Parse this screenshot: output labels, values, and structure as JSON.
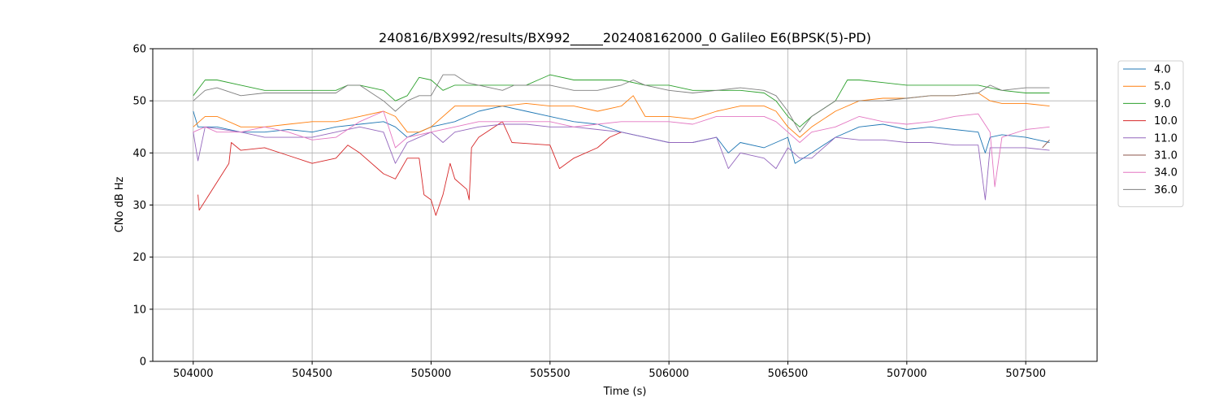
{
  "chart_data": {
    "type": "line",
    "title": "240816/BX992/results/BX992_____202408162000_0 Galileo E6(BPSK(5)-PD)",
    "xlabel": "Time (s)",
    "ylabel": "CNo dB Hz",
    "xlim": [
      503830,
      507800
    ],
    "ylim": [
      0,
      60
    ],
    "x_ticks": [
      504000,
      504500,
      505000,
      505500,
      506000,
      506500,
      507000,
      507500
    ],
    "y_ticks": [
      0,
      10,
      20,
      30,
      40,
      50,
      60
    ],
    "grid": true,
    "legend_position": "upper-right-outside",
    "series": [
      {
        "name": "4.0",
        "color": "#1f77b4",
        "points": [
          [
            504000,
            48
          ],
          [
            504020,
            45
          ],
          [
            504100,
            45
          ],
          [
            504200,
            44
          ],
          [
            504300,
            44
          ],
          [
            504400,
            44.5
          ],
          [
            504500,
            44
          ],
          [
            504600,
            45
          ],
          [
            504700,
            45.5
          ],
          [
            504800,
            46
          ],
          [
            504850,
            45
          ],
          [
            504900,
            43
          ],
          [
            505000,
            45
          ],
          [
            505100,
            46
          ],
          [
            505200,
            48
          ],
          [
            505300,
            49
          ],
          [
            505400,
            48
          ],
          [
            505500,
            47
          ],
          [
            505600,
            46
          ],
          [
            505700,
            45.5
          ],
          [
            505800,
            44
          ],
          [
            505900,
            43
          ],
          [
            506000,
            42
          ],
          [
            506100,
            42
          ],
          [
            506200,
            43
          ],
          [
            506250,
            40
          ],
          [
            506300,
            42
          ],
          [
            506400,
            41
          ],
          [
            506500,
            43
          ],
          [
            506530,
            38
          ],
          [
            506600,
            40
          ],
          [
            506700,
            43
          ],
          [
            506800,
            45
          ],
          [
            506900,
            45.5
          ],
          [
            507000,
            44.5
          ],
          [
            507100,
            45
          ],
          [
            507200,
            44.5
          ],
          [
            507300,
            44
          ],
          [
            507330,
            40
          ],
          [
            507350,
            43
          ],
          [
            507400,
            43.5
          ],
          [
            507500,
            43
          ],
          [
            507600,
            42
          ]
        ]
      },
      {
        "name": "5.0",
        "color": "#ff7f0e",
        "points": [
          [
            504000,
            45
          ],
          [
            504050,
            47
          ],
          [
            504100,
            47
          ],
          [
            504200,
            45
          ],
          [
            504300,
            45
          ],
          [
            504400,
            45.5
          ],
          [
            504500,
            46
          ],
          [
            504600,
            46
          ],
          [
            504700,
            47
          ],
          [
            504800,
            48
          ],
          [
            504850,
            47
          ],
          [
            504900,
            44
          ],
          [
            504950,
            44
          ],
          [
            505000,
            45
          ],
          [
            505100,
            49
          ],
          [
            505200,
            49
          ],
          [
            505300,
            49
          ],
          [
            505400,
            49.5
          ],
          [
            505500,
            49
          ],
          [
            505600,
            49
          ],
          [
            505700,
            48
          ],
          [
            505800,
            49
          ],
          [
            505850,
            51
          ],
          [
            505900,
            47
          ],
          [
            506000,
            47
          ],
          [
            506100,
            46.5
          ],
          [
            506200,
            48
          ],
          [
            506300,
            49
          ],
          [
            506400,
            49
          ],
          [
            506450,
            48
          ],
          [
            506500,
            45
          ],
          [
            506550,
            43
          ],
          [
            506600,
            45
          ],
          [
            506700,
            48
          ],
          [
            506800,
            50
          ],
          [
            506900,
            50.5
          ],
          [
            507000,
            50.5
          ],
          [
            507100,
            51
          ],
          [
            507200,
            51
          ],
          [
            507300,
            51.5
          ],
          [
            507350,
            50
          ],
          [
            507400,
            49.5
          ],
          [
            507500,
            49.5
          ],
          [
            507600,
            49
          ]
        ]
      },
      {
        "name": "9.0",
        "color": "#2ca02c",
        "points": [
          [
            504000,
            51
          ],
          [
            504050,
            54
          ],
          [
            504100,
            54
          ],
          [
            504200,
            53
          ],
          [
            504300,
            52
          ],
          [
            504400,
            52
          ],
          [
            504500,
            52
          ],
          [
            504600,
            52
          ],
          [
            504650,
            53
          ],
          [
            504700,
            53
          ],
          [
            504800,
            52
          ],
          [
            504850,
            50
          ],
          [
            504900,
            51
          ],
          [
            504950,
            54.5
          ],
          [
            505000,
            54
          ],
          [
            505050,
            52
          ],
          [
            505100,
            53
          ],
          [
            505200,
            53
          ],
          [
            505300,
            53
          ],
          [
            505400,
            53
          ],
          [
            505450,
            54
          ],
          [
            505500,
            55
          ],
          [
            505600,
            54
          ],
          [
            505700,
            54
          ],
          [
            505800,
            54
          ],
          [
            505900,
            53
          ],
          [
            506000,
            53
          ],
          [
            506100,
            52
          ],
          [
            506200,
            52
          ],
          [
            506300,
            52
          ],
          [
            506400,
            51.5
          ],
          [
            506450,
            50
          ],
          [
            506500,
            47
          ],
          [
            506550,
            45
          ],
          [
            506600,
            47
          ],
          [
            506700,
            50
          ],
          [
            506750,
            54
          ],
          [
            506800,
            54
          ],
          [
            506900,
            53.5
          ],
          [
            507000,
            53
          ],
          [
            507100,
            53
          ],
          [
            507200,
            53
          ],
          [
            507300,
            53
          ],
          [
            507350,
            52.5
          ],
          [
            507400,
            52
          ],
          [
            507500,
            51.5
          ],
          [
            507600,
            51.5
          ]
        ]
      },
      {
        "name": "10.0",
        "color": "#d62728",
        "points": [
          [
            504020,
            32
          ],
          [
            504025,
            29
          ],
          [
            504150,
            38
          ],
          [
            504160,
            42
          ],
          [
            504200,
            40.5
          ],
          [
            504300,
            41
          ],
          [
            504400,
            39.5
          ],
          [
            504500,
            38
          ],
          [
            504600,
            39
          ],
          [
            504650,
            41.5
          ],
          [
            504700,
            40
          ],
          [
            504800,
            36
          ],
          [
            504850,
            35
          ],
          [
            504900,
            39
          ],
          [
            504950,
            39
          ],
          [
            504970,
            32
          ],
          [
            505000,
            31
          ],
          [
            505020,
            28
          ],
          [
            505050,
            32
          ],
          [
            505080,
            38
          ],
          [
            505100,
            35
          ],
          [
            505150,
            33
          ],
          [
            505160,
            31
          ],
          [
            505170,
            41
          ],
          [
            505200,
            43
          ],
          [
            505300,
            46
          ],
          [
            505340,
            42
          ],
          [
            505500,
            41.5
          ],
          [
            505540,
            37
          ],
          [
            505600,
            39
          ],
          [
            505700,
            41
          ],
          [
            505750,
            43
          ],
          [
            505800,
            44
          ]
        ]
      },
      {
        "name": "11.0",
        "color": "#9467bd",
        "points": [
          [
            504000,
            44
          ],
          [
            504020,
            38.5
          ],
          [
            504050,
            45
          ],
          [
            504200,
            44
          ],
          [
            504300,
            43
          ],
          [
            504400,
            43
          ],
          [
            504500,
            43
          ],
          [
            504600,
            44
          ],
          [
            504700,
            45
          ],
          [
            504800,
            44
          ],
          [
            504850,
            38
          ],
          [
            504900,
            42
          ],
          [
            505000,
            44
          ],
          [
            505050,
            42
          ],
          [
            505100,
            44
          ],
          [
            505200,
            45
          ],
          [
            505300,
            45.5
          ],
          [
            505400,
            45.5
          ],
          [
            505500,
            45
          ],
          [
            505600,
            45
          ],
          [
            505700,
            44.5
          ],
          [
            505800,
            44
          ],
          [
            505900,
            43
          ],
          [
            506000,
            42
          ],
          [
            506100,
            42
          ],
          [
            506200,
            43
          ],
          [
            506250,
            37
          ],
          [
            506300,
            40
          ],
          [
            506400,
            39
          ],
          [
            506450,
            37
          ],
          [
            506500,
            41
          ],
          [
            506550,
            39
          ],
          [
            506600,
            39
          ],
          [
            506650,
            41
          ],
          [
            506700,
            43
          ],
          [
            506800,
            42.5
          ],
          [
            506900,
            42.5
          ],
          [
            507000,
            42
          ],
          [
            507100,
            42
          ],
          [
            507200,
            41.5
          ],
          [
            507300,
            41.5
          ],
          [
            507330,
            31
          ],
          [
            507350,
            41
          ],
          [
            507400,
            41
          ],
          [
            507500,
            41
          ],
          [
            507600,
            40.5
          ]
        ]
      },
      {
        "name": "31.0",
        "color": "#8c564b",
        "points": [
          [
            507570,
            41
          ],
          [
            507600,
            42.5
          ]
        ]
      },
      {
        "name": "34.0",
        "color": "#e377c2",
        "points": [
          [
            504000,
            44
          ],
          [
            504050,
            45
          ],
          [
            504100,
            44
          ],
          [
            504200,
            44
          ],
          [
            504300,
            45
          ],
          [
            504400,
            44
          ],
          [
            504500,
            42.5
          ],
          [
            504600,
            43
          ],
          [
            504700,
            46
          ],
          [
            504800,
            48
          ],
          [
            504850,
            41
          ],
          [
            504900,
            43
          ],
          [
            505000,
            44
          ],
          [
            505100,
            45
          ],
          [
            505200,
            46
          ],
          [
            505300,
            46
          ],
          [
            505400,
            46
          ],
          [
            505500,
            46
          ],
          [
            505600,
            45
          ],
          [
            505700,
            45.5
          ],
          [
            505800,
            46
          ],
          [
            505900,
            46
          ],
          [
            506000,
            46
          ],
          [
            506100,
            45.5
          ],
          [
            506200,
            47
          ],
          [
            506300,
            47
          ],
          [
            506400,
            47
          ],
          [
            506450,
            46
          ],
          [
            506500,
            44
          ],
          [
            506550,
            42
          ],
          [
            506600,
            44
          ],
          [
            506700,
            45
          ],
          [
            506800,
            47
          ],
          [
            506900,
            46
          ],
          [
            507000,
            45.5
          ],
          [
            507100,
            46
          ],
          [
            507200,
            47
          ],
          [
            507300,
            47.5
          ],
          [
            507350,
            44
          ],
          [
            507370,
            33.5
          ],
          [
            507400,
            43
          ],
          [
            507500,
            44.5
          ],
          [
            507600,
            45
          ]
        ]
      },
      {
        "name": "36.0",
        "color": "#7f7f7f",
        "points": [
          [
            504000,
            50
          ],
          [
            504050,
            52
          ],
          [
            504100,
            52.5
          ],
          [
            504200,
            51
          ],
          [
            504300,
            51.5
          ],
          [
            504400,
            51.5
          ],
          [
            504500,
            51.5
          ],
          [
            504600,
            51.5
          ],
          [
            504650,
            53
          ],
          [
            504700,
            53
          ],
          [
            504800,
            50
          ],
          [
            504850,
            48
          ],
          [
            504900,
            50
          ],
          [
            504950,
            51
          ],
          [
            505000,
            51
          ],
          [
            505050,
            55
          ],
          [
            505100,
            55
          ],
          [
            505150,
            53.5
          ],
          [
            505200,
            53
          ],
          [
            505300,
            52
          ],
          [
            505350,
            53
          ],
          [
            505400,
            53
          ],
          [
            505450,
            53
          ],
          [
            505500,
            53
          ],
          [
            505600,
            52
          ],
          [
            505700,
            52
          ],
          [
            505800,
            53
          ],
          [
            505850,
            54
          ],
          [
            505900,
            53
          ],
          [
            506000,
            52
          ],
          [
            506100,
            51.5
          ],
          [
            506200,
            52
          ],
          [
            506300,
            52.5
          ],
          [
            506400,
            52
          ],
          [
            506450,
            51
          ],
          [
            506500,
            48
          ],
          [
            506550,
            44
          ],
          [
            506600,
            47
          ],
          [
            506700,
            50
          ],
          [
            506800,
            50
          ],
          [
            506900,
            50
          ],
          [
            507000,
            50.5
          ],
          [
            507100,
            51
          ],
          [
            507200,
            51
          ],
          [
            507300,
            51.5
          ],
          [
            507350,
            53
          ],
          [
            507400,
            52
          ],
          [
            507500,
            52.5
          ],
          [
            507600,
            52.5
          ]
        ]
      }
    ]
  }
}
